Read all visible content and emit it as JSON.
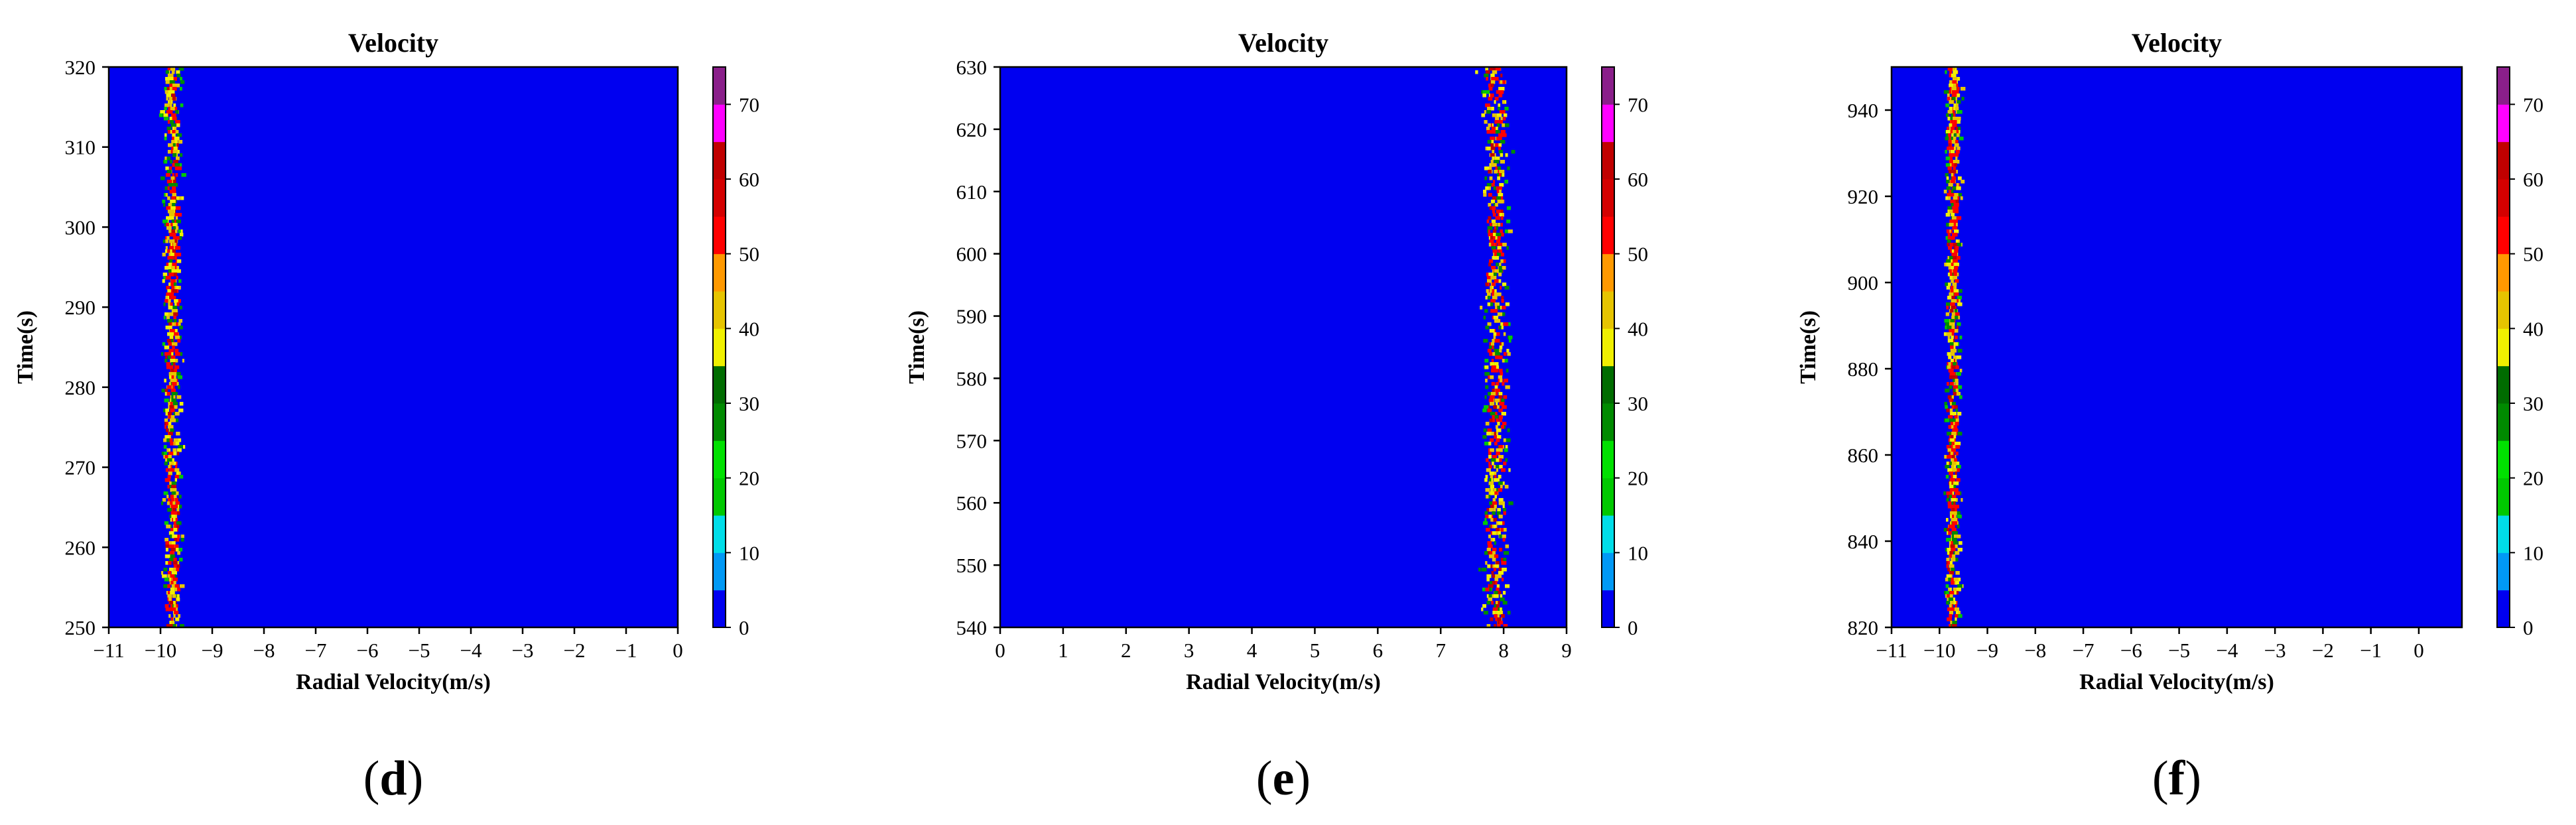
{
  "chart_data": [
    {
      "type": "heatmap",
      "panel": "(d)",
      "panel_letter": "d",
      "title": "Velocity",
      "xlabel": "Radial Velocity(m/s)",
      "ylabel": "Time(s)",
      "xlim": [
        -11,
        0
      ],
      "ylim": [
        250,
        320
      ],
      "xticks": [
        -11,
        -10,
        -9,
        -8,
        -7,
        -6,
        -5,
        -4,
        -3,
        -2,
        -1,
        0
      ],
      "xtick_labels": [
        "−11",
        "−10",
        "−9",
        "−8",
        "−7",
        "−6",
        "−5",
        "−4",
        "−3",
        "−2",
        "−1",
        "0"
      ],
      "yticks": [
        250,
        260,
        270,
        280,
        290,
        300,
        310,
        320
      ],
      "ytick_labels": [
        "250",
        "260",
        "270",
        "280",
        "290",
        "300",
        "310",
        "320"
      ],
      "background_value": 0,
      "signal_band": {
        "center": -9.8,
        "half_width": 0.25,
        "t_start": 250,
        "t_end": 320
      },
      "colorbar": {
        "ticks": [
          "0",
          "10",
          "20",
          "30",
          "40",
          "50",
          "60",
          "70"
        ]
      }
    },
    {
      "type": "heatmap",
      "panel": "(e)",
      "panel_letter": "e",
      "title": "Velocity",
      "xlabel": "Radial Velocity(m/s)",
      "ylabel": "Time(s)",
      "xlim": [
        0,
        9
      ],
      "ylim": [
        540,
        630
      ],
      "xticks": [
        0,
        1,
        2,
        3,
        4,
        5,
        6,
        7,
        8,
        9
      ],
      "xtick_labels": [
        "0",
        "1",
        "2",
        "3",
        "4",
        "5",
        "6",
        "7",
        "8",
        "9"
      ],
      "yticks": [
        540,
        550,
        560,
        570,
        580,
        590,
        600,
        610,
        620,
        630
      ],
      "ytick_labels": [
        "540",
        "550",
        "560",
        "570",
        "580",
        "590",
        "600",
        "610",
        "620",
        "630"
      ],
      "background_value": 0,
      "signal_band": {
        "center": 7.85,
        "half_width": 0.3,
        "t_start": 540,
        "t_end": 630
      },
      "colorbar": {
        "ticks": [
          "0",
          "10",
          "20",
          "30",
          "40",
          "50",
          "60",
          "70"
        ]
      }
    },
    {
      "type": "heatmap",
      "panel": "(f)",
      "panel_letter": "f",
      "title": "Velocity",
      "xlabel": "Radial Velocity(m/s)",
      "ylabel": "Time(s)",
      "xlim": [
        -11,
        0.9
      ],
      "ylim": [
        820,
        950
      ],
      "xticks": [
        -11,
        -10,
        -9,
        -8,
        -7,
        -6,
        -5,
        -4,
        -3,
        -2,
        -1,
        0
      ],
      "xtick_labels": [
        "−11",
        "−10",
        "−9",
        "−8",
        "−7",
        "−6",
        "−5",
        "−4",
        "−3",
        "−2",
        "−1",
        "0"
      ],
      "yticks": [
        820,
        840,
        860,
        880,
        900,
        920,
        940
      ],
      "ytick_labels": [
        "820",
        "840",
        "860",
        "880",
        "900",
        "920",
        "940"
      ],
      "background_value": 0,
      "signal_band": {
        "center": -9.75,
        "half_width": 0.22,
        "t_start": 820,
        "t_end": 950
      },
      "colorbar": {
        "ticks": [
          "0",
          "10",
          "20",
          "30",
          "40",
          "50",
          "60",
          "70"
        ]
      }
    }
  ],
  "colorbar_scale": {
    "levels": [
      0,
      5,
      10,
      15,
      20,
      25,
      30,
      35,
      40,
      45,
      50,
      55,
      60,
      65,
      70,
      75
    ],
    "colors": [
      "#0000f0",
      "#0199f5",
      "#00dde8",
      "#00c800",
      "#00e000",
      "#008a00",
      "#006c00",
      "#f0f000",
      "#e6c400",
      "#ff9900",
      "#ff0000",
      "#d40000",
      "#c00000",
      "#ff00ff",
      "#8a1f8a",
      "#a890e6"
    ]
  },
  "colors": {
    "background": "#0000f0",
    "axis": "#000000"
  }
}
